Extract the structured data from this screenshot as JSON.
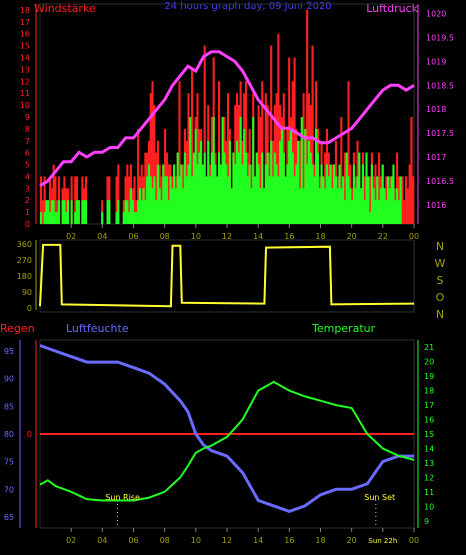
{
  "colors": {
    "red": "#ff2020",
    "magenta": "#ff40ff",
    "blue": "#6a6aff",
    "green": "#20ff20",
    "yellow": "#ffff30",
    "olive": "#a0a000",
    "white": "#ffffff"
  },
  "header": {
    "left": "Windstärke",
    "center": "24 hours graph day, 09 Juni 2020",
    "right": "Luftdruck"
  },
  "direction_letters": [
    "N",
    "W",
    "S",
    "O",
    "N"
  ],
  "bottom_header": {
    "left": "Regen",
    "middle": "Luftfeuchte",
    "right": "Temperatur"
  },
  "annotations": {
    "sunrise": "Sun Rise",
    "sunset": "Sun Set",
    "now": "Sun 22h"
  },
  "chart_data": [
    {
      "type": "bar",
      "name": "wind",
      "xlabels": [
        "02",
        "04",
        "06",
        "08",
        "10",
        "12",
        "14",
        "16",
        "18",
        "20",
        "22",
        "00"
      ],
      "ylabels_left": [
        "0",
        "1",
        "2",
        "3",
        "4",
        "5",
        "6",
        "7",
        "8",
        "9",
        "10",
        "11",
        "12",
        "13",
        "14",
        "15",
        "16",
        "17",
        "18"
      ],
      "ylabels_right": [
        "1016",
        "1016.5",
        "1017",
        "1017.5",
        "1018",
        "1018.5",
        "1019",
        "1019.5",
        "1020"
      ],
      "ylim_left": [
        0,
        18.5
      ],
      "ylim_right": [
        1015.6,
        1020.2
      ],
      "x_hours": [
        0,
        24
      ],
      "gust_values": [
        4,
        2,
        4,
        2,
        1,
        4,
        3,
        5,
        4,
        2,
        4,
        0,
        3,
        4,
        3,
        3,
        0,
        4,
        0,
        4,
        4,
        2,
        0,
        4,
        3,
        4,
        0,
        0,
        0,
        0,
        0,
        0,
        0,
        0,
        2,
        0,
        0,
        4,
        4,
        0,
        0,
        0,
        4,
        5,
        0,
        0,
        2,
        4,
        5,
        4,
        5,
        3,
        4,
        2,
        8,
        4,
        5,
        4,
        6,
        6,
        7,
        11,
        12,
        10,
        6,
        7,
        5,
        4,
        5,
        8,
        6,
        5,
        5,
        4,
        3,
        4,
        6,
        12,
        4,
        5,
        8,
        7,
        11,
        5,
        13,
        5,
        9,
        11,
        8,
        8,
        5,
        15,
        4,
        10,
        5,
        9,
        14,
        6,
        4,
        12,
        5,
        6,
        9,
        7,
        11,
        8,
        3,
        6,
        10,
        11,
        10,
        12,
        7,
        11,
        12,
        6,
        8,
        5,
        11,
        3,
        6,
        10,
        9,
        12,
        3,
        11,
        10,
        6,
        15,
        7,
        10,
        11,
        16,
        10,
        9,
        11,
        4,
        8,
        14,
        9,
        12,
        14,
        8,
        6,
        7,
        4,
        11,
        4,
        18,
        11,
        10,
        15,
        5,
        12,
        8,
        4,
        7,
        3,
        6,
        8,
        6,
        4,
        5,
        5,
        7,
        4,
        3,
        9,
        4,
        6,
        4,
        12,
        5,
        3,
        6,
        4,
        7,
        5,
        3,
        6,
        4,
        5,
        3,
        4,
        6,
        4,
        5,
        3,
        6,
        4,
        5,
        3,
        4,
        2,
        4,
        3,
        4,
        3,
        6,
        4,
        3,
        4,
        2,
        4,
        3,
        5,
        9,
        4
      ],
      "avg_values": [
        1,
        0,
        1,
        2,
        2,
        1,
        2,
        2,
        1,
        1,
        2,
        0,
        2,
        2,
        1,
        2,
        0,
        2,
        0,
        1,
        2,
        2,
        0,
        2,
        2,
        2,
        0,
        0,
        0,
        0,
        0,
        0,
        0,
        0,
        1,
        0,
        0,
        2,
        2,
        0,
        0,
        0,
        1,
        2,
        0,
        0,
        1,
        2,
        2,
        1,
        3,
        2,
        1,
        1,
        2,
        3,
        2,
        3,
        2,
        4,
        5,
        4,
        3,
        4,
        2,
        5,
        3,
        2,
        5,
        4,
        4,
        2,
        4,
        3,
        5,
        3,
        6,
        4,
        5,
        3,
        6,
        4,
        5,
        9,
        4,
        6,
        8,
        5,
        6,
        7,
        5,
        6,
        4,
        7,
        4,
        6,
        9,
        5,
        4,
        6,
        5,
        9,
        6,
        5,
        4,
        7,
        3,
        6,
        5,
        7,
        6,
        9,
        5,
        8,
        6,
        4,
        5,
        3,
        9,
        4,
        6,
        5,
        3,
        6,
        3,
        5,
        6,
        4,
        7,
        4,
        6,
        5,
        4,
        7,
        8,
        6,
        4,
        5,
        7,
        8,
        6,
        4,
        5,
        7,
        3,
        9,
        3,
        8,
        5,
        7,
        6,
        5,
        4,
        8,
        6,
        3,
        5,
        4,
        3,
        5,
        4,
        5,
        3,
        5,
        4,
        3,
        5,
        3,
        4,
        2,
        6,
        4,
        3,
        2,
        5,
        3,
        4,
        6,
        3,
        5,
        2,
        6,
        4,
        1,
        5,
        3,
        2,
        4,
        2,
        3,
        5,
        3,
        2,
        4,
        3,
        4,
        5,
        2,
        3,
        2,
        4
      ],
      "pressure": [
        [
          0,
          1016.4
        ],
        [
          0.5,
          1016.5
        ],
        [
          1,
          1016.7
        ],
        [
          1.5,
          1016.9
        ],
        [
          2,
          1016.9
        ],
        [
          2.5,
          1017.1
        ],
        [
          3,
          1017.0
        ],
        [
          3.5,
          1017.1
        ],
        [
          4,
          1017.1
        ],
        [
          4.5,
          1017.2
        ],
        [
          5,
          1017.2
        ],
        [
          5.5,
          1017.4
        ],
        [
          6,
          1017.4
        ],
        [
          6.5,
          1017.6
        ],
        [
          7,
          1017.8
        ],
        [
          7.5,
          1018.0
        ],
        [
          8,
          1018.2
        ],
        [
          8.5,
          1018.5
        ],
        [
          9,
          1018.7
        ],
        [
          9.5,
          1018.9
        ],
        [
          10,
          1018.8
        ],
        [
          10.5,
          1019.1
        ],
        [
          11,
          1019.2
        ],
        [
          11.5,
          1019.2
        ],
        [
          12,
          1019.1
        ],
        [
          12.5,
          1019.0
        ],
        [
          13,
          1018.8
        ],
        [
          13.5,
          1018.5
        ],
        [
          14,
          1018.2
        ],
        [
          14.5,
          1018.0
        ],
        [
          15,
          1017.8
        ],
        [
          15.5,
          1017.6
        ],
        [
          16,
          1017.6
        ],
        [
          16.5,
          1017.5
        ],
        [
          17,
          1017.4
        ],
        [
          17.5,
          1017.4
        ],
        [
          18,
          1017.3
        ],
        [
          18.5,
          1017.3
        ],
        [
          19,
          1017.4
        ],
        [
          19.5,
          1017.5
        ],
        [
          20,
          1017.6
        ],
        [
          20.5,
          1017.8
        ],
        [
          21,
          1018.0
        ],
        [
          21.5,
          1018.2
        ],
        [
          22,
          1018.4
        ],
        [
          22.5,
          1018.5
        ],
        [
          23,
          1018.5
        ],
        [
          23.5,
          1018.4
        ],
        [
          24,
          1018.5
        ]
      ]
    },
    {
      "type": "line",
      "name": "direction",
      "ylabels": [
        "0",
        "90",
        "180",
        "270",
        "360"
      ],
      "ylim": [
        0,
        360
      ],
      "values": [
        [
          0,
          10
        ],
        [
          0.2,
          355
        ],
        [
          1.3,
          355
        ],
        [
          1.4,
          20
        ],
        [
          8.4,
          10
        ],
        [
          8.5,
          350
        ],
        [
          9,
          350
        ],
        [
          9.1,
          30
        ],
        [
          14.4,
          25
        ],
        [
          14.5,
          340
        ],
        [
          18.6,
          345
        ],
        [
          18.7,
          20
        ],
        [
          24,
          25
        ]
      ]
    },
    {
      "type": "line",
      "name": "climate",
      "ylabels_left": [
        "65",
        "70",
        "75",
        "80",
        "85",
        "90",
        "95"
      ],
      "ylabels_right": [
        "9",
        "10",
        "11",
        "12",
        "13",
        "14",
        "15",
        "16",
        "17",
        "18",
        "19",
        "20",
        "21"
      ],
      "ylim_left": [
        63,
        97
      ],
      "ylim_right": [
        8.5,
        21.5
      ],
      "rain_level": 0,
      "humidity": [
        [
          0,
          96
        ],
        [
          1,
          95
        ],
        [
          2,
          94
        ],
        [
          3,
          93
        ],
        [
          4,
          93
        ],
        [
          5,
          93
        ],
        [
          6,
          92
        ],
        [
          7,
          91
        ],
        [
          8,
          89
        ],
        [
          9,
          86
        ],
        [
          9.5,
          84
        ],
        [
          10,
          80
        ],
        [
          10.5,
          78
        ],
        [
          11,
          77
        ],
        [
          12,
          76
        ],
        [
          13,
          73
        ],
        [
          14,
          68
        ],
        [
          15,
          67
        ],
        [
          16,
          66
        ],
        [
          17,
          67
        ],
        [
          18,
          69
        ],
        [
          19,
          70
        ],
        [
          20,
          70
        ],
        [
          21,
          71
        ],
        [
          22,
          75
        ],
        [
          23,
          76
        ],
        [
          24,
          76
        ]
      ],
      "temperature": [
        [
          0,
          11.5
        ],
        [
          0.5,
          11.8
        ],
        [
          1,
          11.4
        ],
        [
          2,
          11.0
        ],
        [
          3,
          10.5
        ],
        [
          4,
          10.4
        ],
        [
          5,
          10.4
        ],
        [
          6,
          10.4
        ],
        [
          7,
          10.6
        ],
        [
          8,
          11.0
        ],
        [
          8.5,
          11.5
        ],
        [
          9,
          12.0
        ],
        [
          9.5,
          12.8
        ],
        [
          10,
          13.7
        ],
        [
          10.5,
          14.0
        ],
        [
          11,
          14.2
        ],
        [
          12,
          14.8
        ],
        [
          13,
          16.0
        ],
        [
          14,
          18.0
        ],
        [
          15,
          18.6
        ],
        [
          15.5,
          18.3
        ],
        [
          16,
          18.0
        ],
        [
          17,
          17.6
        ],
        [
          18,
          17.3
        ],
        [
          19,
          17.0
        ],
        [
          20,
          16.8
        ],
        [
          21,
          15.0
        ],
        [
          22,
          14.0
        ],
        [
          23,
          13.5
        ],
        [
          24,
          13.2
        ]
      ]
    }
  ]
}
